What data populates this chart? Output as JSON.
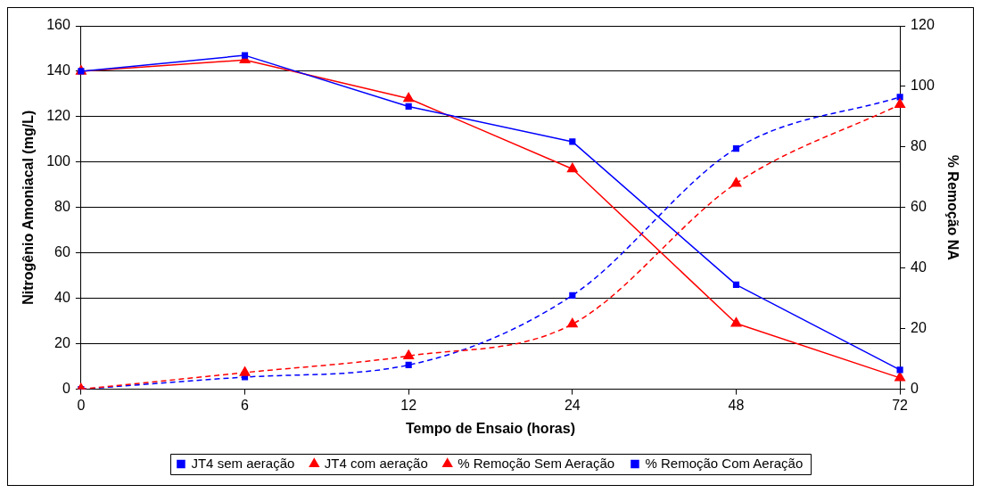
{
  "chart_data": {
    "type": "line",
    "xlabel": "Tempo de Ensaio (horas)",
    "ylabel": "Nitrogênio Amoniacal (mg/L)",
    "y2label": "% Remoção NA",
    "categories": [
      "0",
      "6",
      "12",
      "24",
      "48",
      "72"
    ],
    "ylim": [
      0,
      160
    ],
    "yticks": [
      0,
      20,
      40,
      60,
      80,
      100,
      120,
      140,
      160
    ],
    "y2lim": [
      0,
      120
    ],
    "y2ticks": [
      0,
      20,
      40,
      60,
      80,
      100,
      120
    ],
    "grid": "y",
    "legend": "bottom",
    "series": [
      {
        "name": "JT4 sem aeração",
        "color": "#0000ff",
        "marker": "square",
        "line_style": "solid",
        "values": [
          140,
          147,
          124.5,
          109,
          46,
          8.5
        ]
      },
      {
        "name": "JT4 com aeração",
        "color": "#ff0000",
        "marker": "triangle",
        "line_style": "solid",
        "values": [
          140,
          145,
          128,
          97,
          29,
          5
        ]
      },
      {
        "name": "% Remoção Sem Aeração",
        "color": "#ff0000",
        "marker": "triangle",
        "line_style": "dashed",
        "axis": "y2",
        "values": [
          0,
          5.5,
          11,
          21.5,
          68,
          94
        ]
      },
      {
        "name": "% Remoção Com Aeração",
        "color": "#0000ff",
        "marker": "square",
        "line_style": "dashed",
        "axis": "y2",
        "values": [
          0,
          4,
          8,
          31,
          79.5,
          96.5
        ]
      }
    ]
  }
}
